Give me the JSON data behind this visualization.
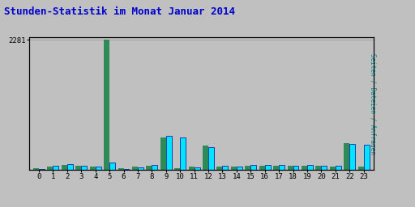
{
  "title": "Stunden-Statistik im Monat Januar 2014",
  "title_color": "#0000cc",
  "background_color": "#c0c0c0",
  "hours": [
    0,
    1,
    2,
    3,
    4,
    5,
    6,
    7,
    8,
    9,
    10,
    11,
    12,
    13,
    14,
    15,
    16,
    17,
    18,
    19,
    20,
    21,
    22,
    23
  ],
  "seiten": [
    25,
    50,
    80,
    65,
    50,
    2281,
    25,
    55,
    65,
    570,
    25,
    50,
    430,
    60,
    55,
    70,
    75,
    75,
    65,
    75,
    70,
    60,
    470,
    60
  ],
  "dateien": [
    15,
    65,
    95,
    75,
    55,
    120,
    10,
    45,
    80,
    590,
    570,
    40,
    390,
    70,
    60,
    80,
    85,
    80,
    75,
    80,
    75,
    70,
    460,
    440
  ],
  "color_seiten": "#2e8b57",
  "color_dateien": "#00e5ff",
  "color_dateien_edge": "#0000aa",
  "ylim_max": 2281,
  "ytick_val": 2281,
  "bar_width": 0.4,
  "plot_bg": "#c0c0c0",
  "grid_color": "#999999",
  "ylabel_right": "Seiten / Dateien / Anfragen",
  "ylabel_right_color": "#009090"
}
